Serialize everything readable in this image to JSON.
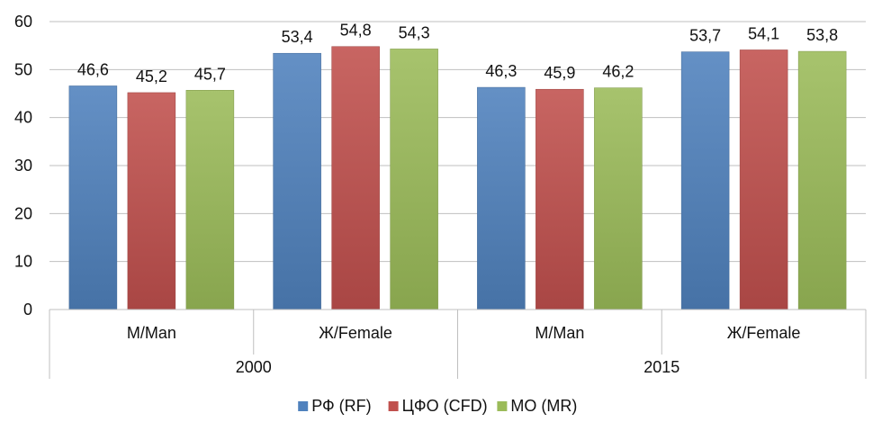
{
  "chart_data": {
    "type": "bar",
    "ylim": [
      0,
      60
    ],
    "yticks": [
      0,
      10,
      20,
      30,
      40,
      50,
      60
    ],
    "grid": true,
    "legend_position": "bottom",
    "groups": [
      {
        "label": "2000",
        "categories": [
          "М/Man",
          "Ж/Female"
        ]
      },
      {
        "label": "2015",
        "categories": [
          "М/Man",
          "Ж/Female"
        ]
      }
    ],
    "series": [
      {
        "name": "РФ (RF)",
        "color": "#4F81BD",
        "values": [
          46.6,
          53.4,
          46.3,
          53.7
        ],
        "labels": [
          "46,6",
          "53,4",
          "46,3",
          "53,7"
        ]
      },
      {
        "name": "ЦФО (CFD)",
        "color": "#C0504D",
        "values": [
          45.2,
          54.8,
          45.9,
          54.1
        ],
        "labels": [
          "45,2",
          "54,8",
          "45,9",
          "54,1"
        ]
      },
      {
        "name": "МО (MR)",
        "color": "#9BBB59",
        "values": [
          45.7,
          54.3,
          46.2,
          53.8
        ],
        "labels": [
          "45,7",
          "54,3",
          "46,2",
          "53,8"
        ]
      }
    ]
  }
}
